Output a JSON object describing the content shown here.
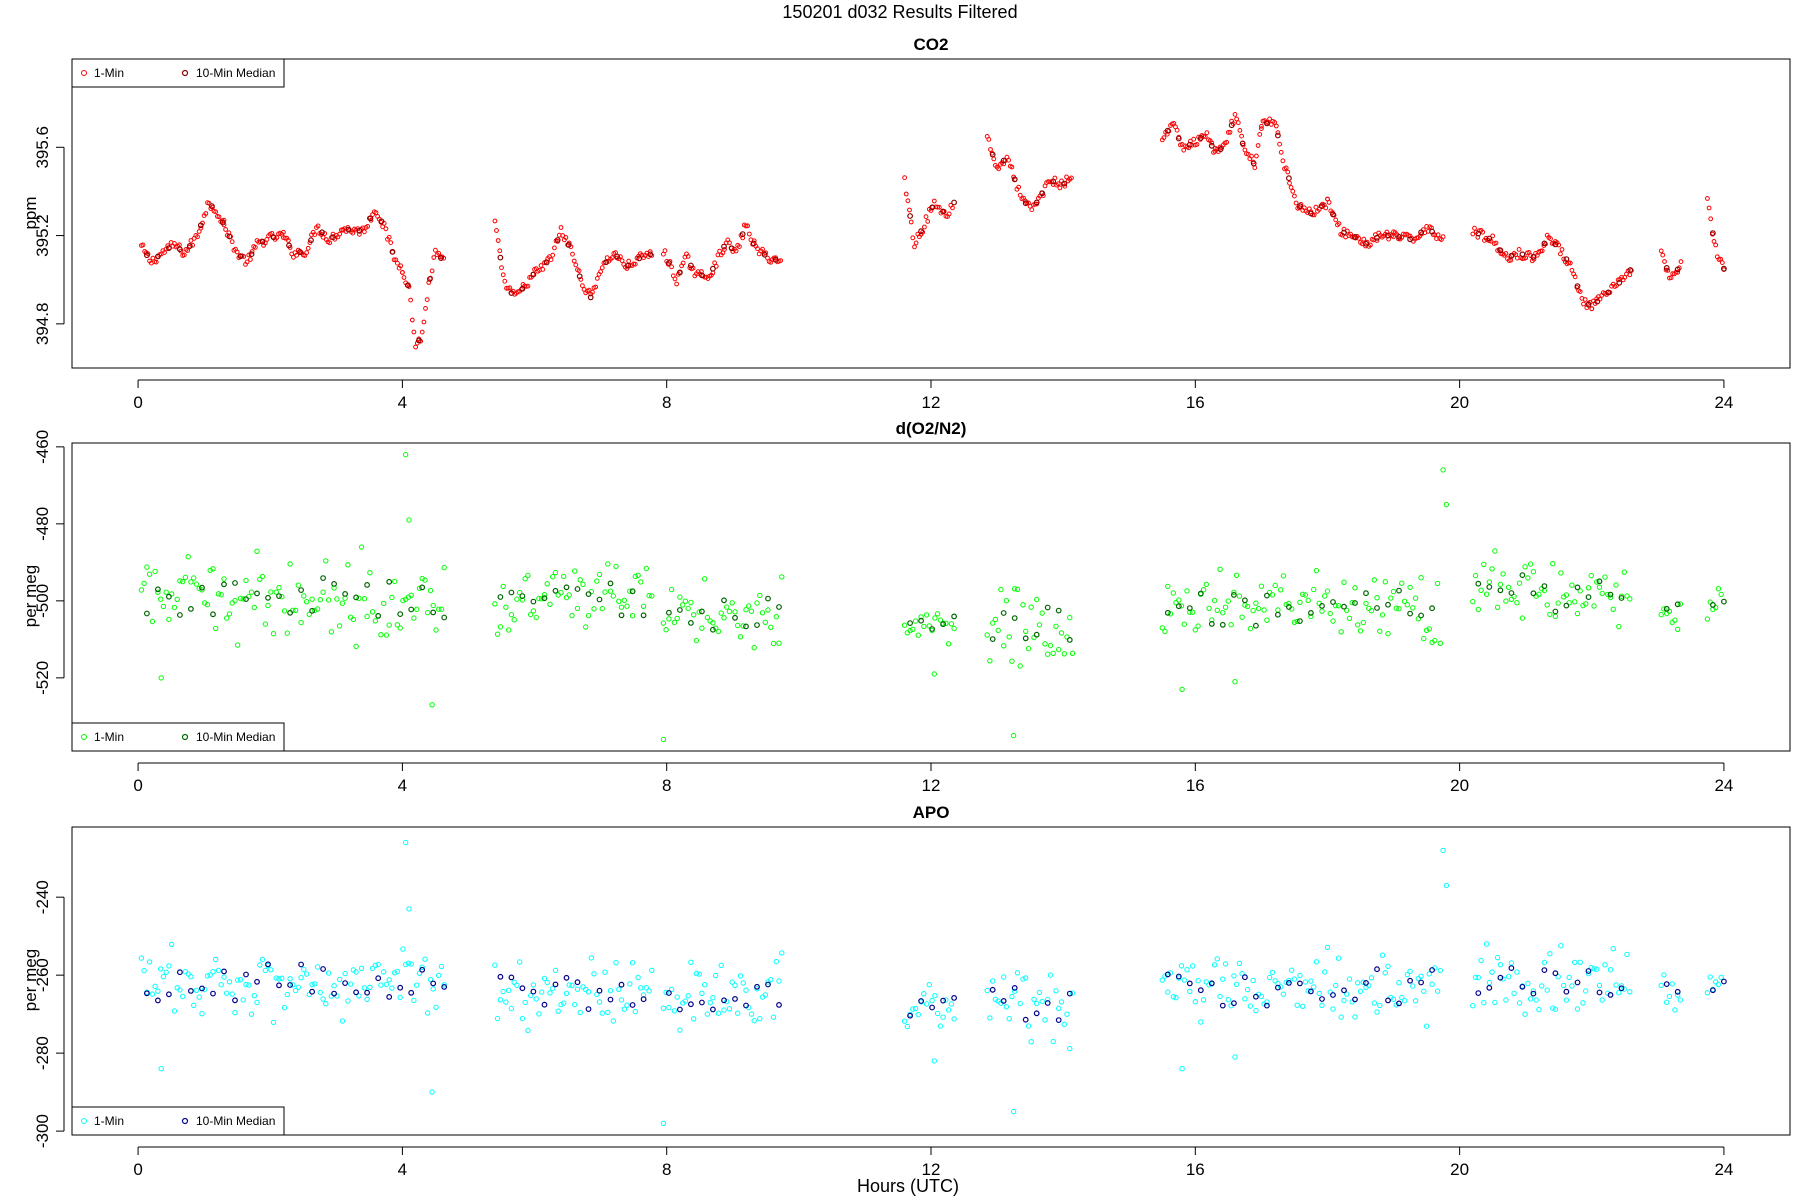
{
  "figure": {
    "supertitle": "150201   d032   Results Filtered",
    "xlabel": "Hours (UTC)"
  },
  "chart_data": [
    {
      "type": "scatter",
      "title": "CO2",
      "xlabel": "",
      "ylabel": "ppm",
      "xlim": [
        -1,
        25
      ],
      "ylim": [
        394.6,
        396.0
      ],
      "xticks": [
        "0",
        "4",
        "8",
        "12",
        "16",
        "20",
        "24"
      ],
      "yticks": [
        "394.8",
        "395.2",
        "395.6"
      ],
      "legend": {
        "position": "top-left",
        "entries": [
          "1-Min",
          "10-Min Median"
        ]
      },
      "colors": {
        "one_min": "#ff0000",
        "median": "#8b0000"
      },
      "segments": [
        {
          "start": 0.05,
          "end": 0.7,
          "nodes": [
            [
              0.05,
              395.15
            ],
            [
              0.2,
              395.08
            ],
            [
              0.4,
              395.13
            ],
            [
              0.55,
              395.16
            ],
            [
              0.7,
              395.12
            ]
          ]
        },
        {
          "start": 0.7,
          "end": 1.3,
          "nodes": [
            [
              0.7,
              395.12
            ],
            [
              0.9,
              395.2
            ],
            [
              1.05,
              395.34
            ],
            [
              1.15,
              395.33
            ],
            [
              1.3,
              395.25
            ]
          ]
        },
        {
          "start": 1.3,
          "end": 2.2,
          "nodes": [
            [
              1.3,
              395.25
            ],
            [
              1.5,
              395.12
            ],
            [
              1.65,
              395.08
            ],
            [
              1.8,
              395.16
            ],
            [
              2.0,
              395.19
            ],
            [
              2.2,
              395.2
            ]
          ]
        },
        {
          "start": 2.2,
          "end": 3.1,
          "nodes": [
            [
              2.2,
              395.2
            ],
            [
              2.35,
              395.12
            ],
            [
              2.55,
              395.13
            ],
            [
              2.7,
              395.24
            ],
            [
              2.9,
              395.18
            ],
            [
              3.1,
              395.23
            ]
          ]
        },
        {
          "start": 3.1,
          "end": 4.0,
          "nodes": [
            [
              3.1,
              395.23
            ],
            [
              3.4,
              395.22
            ],
            [
              3.6,
              395.32
            ],
            [
              3.75,
              395.22
            ],
            [
              3.9,
              395.08
            ],
            [
              4.0,
              395.05
            ]
          ]
        },
        {
          "start": 4.0,
          "end": 4.65,
          "nodes": [
            [
              4.0,
              395.05
            ],
            [
              4.1,
              394.96
            ],
            [
              4.2,
              394.7
            ],
            [
              4.3,
              394.75
            ],
            [
              4.4,
              394.98
            ],
            [
              4.5,
              395.12
            ],
            [
              4.65,
              395.08
            ]
          ]
        },
        {
          "start": 5.4,
          "end": 6.1,
          "nodes": [
            [
              5.4,
              395.25
            ],
            [
              5.55,
              394.98
            ],
            [
              5.7,
              394.92
            ],
            [
              5.85,
              394.97
            ],
            [
              6.0,
              395.03
            ],
            [
              6.1,
              395.05
            ]
          ]
        },
        {
          "start": 6.1,
          "end": 7.0,
          "nodes": [
            [
              6.1,
              395.05
            ],
            [
              6.25,
              395.1
            ],
            [
              6.4,
              395.22
            ],
            [
              6.55,
              395.14
            ],
            [
              6.7,
              395.0
            ],
            [
              6.85,
              394.92
            ],
            [
              7.0,
              395.05
            ]
          ]
        },
        {
          "start": 7.0,
          "end": 7.8,
          "nodes": [
            [
              7.0,
              395.05
            ],
            [
              7.2,
              395.12
            ],
            [
              7.4,
              395.06
            ],
            [
              7.6,
              395.1
            ],
            [
              7.8,
              395.12
            ]
          ]
        },
        {
          "start": 7.95,
          "end": 8.9,
          "nodes": [
            [
              7.95,
              395.13
            ],
            [
              8.15,
              395.0
            ],
            [
              8.3,
              395.1
            ],
            [
              8.45,
              395.02
            ],
            [
              8.65,
              395.02
            ],
            [
              8.9,
              395.17
            ]
          ]
        },
        {
          "start": 8.9,
          "end": 9.75,
          "nodes": [
            [
              8.9,
              395.17
            ],
            [
              9.05,
              395.12
            ],
            [
              9.2,
              395.25
            ],
            [
              9.35,
              395.14
            ],
            [
              9.55,
              395.1
            ],
            [
              9.75,
              395.08
            ]
          ]
        },
        {
          "start": 11.6,
          "end": 12.1,
          "nodes": [
            [
              11.6,
              395.45
            ],
            [
              11.75,
              395.16
            ],
            [
              11.9,
              395.25
            ],
            [
              12.05,
              395.35
            ],
            [
              12.1,
              395.32
            ]
          ]
        },
        {
          "start": 12.1,
          "end": 12.35,
          "nodes": [
            [
              12.1,
              395.32
            ],
            [
              12.25,
              395.3
            ],
            [
              12.35,
              395.35
            ]
          ]
        },
        {
          "start": 12.85,
          "end": 13.6,
          "nodes": [
            [
              12.85,
              395.65
            ],
            [
              13.0,
              395.5
            ],
            [
              13.15,
              395.56
            ],
            [
              13.35,
              395.38
            ],
            [
              13.5,
              395.32
            ],
            [
              13.6,
              395.35
            ]
          ]
        },
        {
          "start": 13.6,
          "end": 14.15,
          "nodes": [
            [
              13.6,
              395.35
            ],
            [
              13.8,
              395.45
            ],
            [
              14.0,
              395.43
            ],
            [
              14.15,
              395.48
            ]
          ]
        },
        {
          "start": 15.5,
          "end": 16.3,
          "nodes": [
            [
              15.5,
              395.62
            ],
            [
              15.65,
              395.72
            ],
            [
              15.8,
              395.6
            ],
            [
              16.0,
              395.62
            ],
            [
              16.15,
              395.66
            ],
            [
              16.3,
              395.58
            ]
          ]
        },
        {
          "start": 16.3,
          "end": 17.0,
          "nodes": [
            [
              16.3,
              395.58
            ],
            [
              16.45,
              395.6
            ],
            [
              16.6,
              395.75
            ],
            [
              16.75,
              395.58
            ],
            [
              16.9,
              395.52
            ],
            [
              17.0,
              395.7
            ]
          ]
        },
        {
          "start": 17.0,
          "end": 18.0,
          "nodes": [
            [
              17.0,
              395.7
            ],
            [
              17.2,
              395.72
            ],
            [
              17.35,
              395.52
            ],
            [
              17.55,
              395.34
            ],
            [
              17.75,
              395.3
            ],
            [
              18.0,
              395.35
            ]
          ]
        },
        {
          "start": 18.0,
          "end": 19.0,
          "nodes": [
            [
              18.0,
              395.35
            ],
            [
              18.2,
              395.22
            ],
            [
              18.45,
              395.19
            ],
            [
              18.6,
              395.16
            ],
            [
              18.8,
              395.2
            ],
            [
              19.0,
              395.2
            ]
          ]
        },
        {
          "start": 19.0,
          "end": 19.75,
          "nodes": [
            [
              19.0,
              395.2
            ],
            [
              19.3,
              395.18
            ],
            [
              19.5,
              395.24
            ],
            [
              19.65,
              395.2
            ],
            [
              19.75,
              395.2
            ]
          ]
        },
        {
          "start": 20.2,
          "end": 21.2,
          "nodes": [
            [
              20.2,
              395.22
            ],
            [
              20.5,
              395.18
            ],
            [
              20.7,
              395.1
            ],
            [
              20.9,
              395.12
            ],
            [
              21.1,
              395.1
            ],
            [
              21.2,
              395.12
            ]
          ]
        },
        {
          "start": 21.2,
          "end": 22.0,
          "nodes": [
            [
              21.2,
              395.12
            ],
            [
              21.35,
              395.2
            ],
            [
              21.55,
              395.12
            ],
            [
              21.7,
              395.06
            ],
            [
              21.85,
              394.9
            ],
            [
              22.0,
              394.88
            ]
          ]
        },
        {
          "start": 22.0,
          "end": 22.6,
          "nodes": [
            [
              22.0,
              394.88
            ],
            [
              22.2,
              394.93
            ],
            [
              22.4,
              394.98
            ],
            [
              22.6,
              395.05
            ]
          ]
        },
        {
          "start": 23.05,
          "end": 23.35,
          "nodes": [
            [
              23.05,
              395.12
            ],
            [
              23.2,
              395.0
            ],
            [
              23.35,
              395.07
            ]
          ]
        },
        {
          "start": 23.75,
          "end": 24.0,
          "nodes": [
            [
              23.75,
              395.35
            ],
            [
              23.9,
              395.1
            ],
            [
              24.0,
              395.05
            ]
          ]
        }
      ]
    },
    {
      "type": "scatter",
      "title": "d(O2/N2)",
      "xlabel": "",
      "ylabel": "per meg",
      "xlim": [
        -1,
        25
      ],
      "ylim": [
        -539,
        -459
      ],
      "xticks": [
        "0",
        "4",
        "8",
        "12",
        "16",
        "20",
        "24"
      ],
      "yticks": [
        "-460",
        "-480",
        "-500",
        "-520"
      ],
      "legend": {
        "position": "bottom-left",
        "entries": [
          "1-Min",
          "10-Min Median"
        ]
      },
      "colors": {
        "one_min": "#00ff00",
        "median": "#006400"
      },
      "segments": [
        {
          "start": 0.05,
          "end": 4.65,
          "center": -499,
          "spread": 9
        },
        {
          "start": 5.4,
          "end": 7.8,
          "center": -500,
          "spread": 8
        },
        {
          "start": 7.95,
          "end": 9.75,
          "center": -503,
          "spread": 8
        },
        {
          "start": 11.6,
          "end": 12.35,
          "center": -506,
          "spread": 4
        },
        {
          "start": 12.85,
          "end": 14.15,
          "center": -507,
          "spread": 9
        },
        {
          "start": 15.5,
          "end": 19.75,
          "center": -502,
          "spread": 8
        },
        {
          "start": 20.2,
          "end": 22.6,
          "center": -498,
          "spread": 8
        },
        {
          "start": 23.05,
          "end": 23.35,
          "center": -503,
          "spread": 5
        },
        {
          "start": 23.75,
          "end": 24.0,
          "center": -500,
          "spread": 4
        }
      ],
      "outliers": [
        [
          4.05,
          -462
        ],
        [
          4.1,
          -479
        ],
        [
          4.45,
          -527
        ],
        [
          7.95,
          -536
        ],
        [
          12.05,
          -519
        ],
        [
          13.25,
          -535
        ],
        [
          15.8,
          -523
        ],
        [
          16.6,
          -521
        ],
        [
          19.75,
          -466
        ],
        [
          19.8,
          -475
        ],
        [
          0.35,
          -520
        ]
      ]
    },
    {
      "type": "scatter",
      "title": "APO",
      "xlabel": "Hours (UTC)",
      "ylabel": "per meg",
      "xlim": [
        -1,
        25
      ],
      "ylim": [
        -301,
        -222
      ],
      "xticks": [
        "0",
        "4",
        "8",
        "12",
        "16",
        "20",
        "24"
      ],
      "yticks": [
        "-240",
        "-260",
        "-280",
        "-300"
      ],
      "legend": {
        "position": "bottom-left",
        "entries": [
          "1-Min",
          "10-Min Median"
        ]
      },
      "colors": {
        "one_min": "#00ffff",
        "median": "#00008b"
      },
      "segments": [
        {
          "start": 0.05,
          "end": 4.65,
          "center": -262,
          "spread": 8
        },
        {
          "start": 5.4,
          "end": 7.8,
          "center": -264,
          "spread": 8
        },
        {
          "start": 7.95,
          "end": 9.75,
          "center": -266,
          "spread": 8
        },
        {
          "start": 11.6,
          "end": 12.35,
          "center": -268,
          "spread": 4
        },
        {
          "start": 12.85,
          "end": 14.15,
          "center": -268,
          "spread": 9
        },
        {
          "start": 15.5,
          "end": 19.75,
          "center": -263,
          "spread": 8
        },
        {
          "start": 20.2,
          "end": 22.6,
          "center": -262,
          "spread": 8
        },
        {
          "start": 23.05,
          "end": 23.35,
          "center": -265,
          "spread": 5
        },
        {
          "start": 23.75,
          "end": 24.0,
          "center": -263,
          "spread": 4
        }
      ],
      "outliers": [
        [
          4.05,
          -226
        ],
        [
          4.1,
          -243
        ],
        [
          4.45,
          -290
        ],
        [
          7.95,
          -298
        ],
        [
          12.05,
          -282
        ],
        [
          13.25,
          -295
        ],
        [
          15.8,
          -284
        ],
        [
          16.6,
          -281
        ],
        [
          19.75,
          -228
        ],
        [
          19.8,
          -237
        ],
        [
          0.35,
          -284
        ]
      ]
    }
  ]
}
